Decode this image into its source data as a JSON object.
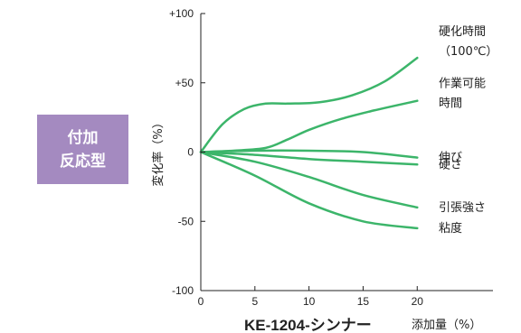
{
  "badge": {
    "line1": "付加",
    "line2": "反応型",
    "color": "#a48ac0"
  },
  "chart_data": {
    "type": "line",
    "ylabel": "変化率（%）",
    "xlabel_main": "KE-1204-シンナー",
    "xlabel_sub": "添加量（%）",
    "xlim": [
      0,
      27
    ],
    "ylim": [
      -100,
      100
    ],
    "x_ticks": [
      0,
      5,
      10,
      15,
      20
    ],
    "y_ticks": [
      100,
      50,
      0,
      -50,
      -100
    ],
    "y_tick_labels": [
      "+100",
      "+50",
      "0",
      "-50",
      "-100"
    ],
    "line_color": "#3cb56a",
    "series": [
      {
        "label_lines": [
          "硬化時間",
          "（100℃）"
        ],
        "x": [
          0,
          2,
          4,
          6,
          8,
          11,
          14,
          17,
          20
        ],
        "y": [
          0,
          20,
          31,
          35,
          35,
          36,
          41,
          51,
          68
        ]
      },
      {
        "label_lines": [
          "作業可能",
          "時間"
        ],
        "x": [
          0,
          3,
          6,
          8,
          10,
          13,
          16,
          20
        ],
        "y": [
          0,
          1,
          3,
          9,
          16,
          24,
          30,
          37
        ]
      },
      {
        "label_lines": [
          "伸び"
        ],
        "x": [
          0,
          5,
          10,
          15,
          20
        ],
        "y": [
          0,
          1,
          1,
          0,
          -4
        ]
      },
      {
        "label_lines": [
          "硬さ"
        ],
        "x": [
          0,
          5,
          10,
          15,
          20
        ],
        "y": [
          0,
          -2,
          -5,
          -7,
          -9
        ]
      },
      {
        "label_lines": [
          "引張強さ"
        ],
        "x": [
          0,
          5,
          10,
          15,
          20
        ],
        "y": [
          0,
          -7,
          -18,
          -31,
          -40
        ]
      },
      {
        "label_lines": [
          "粘度"
        ],
        "x": [
          0,
          5,
          10,
          15,
          20
        ],
        "y": [
          0,
          -17,
          -37,
          -50,
          -55
        ]
      }
    ]
  }
}
